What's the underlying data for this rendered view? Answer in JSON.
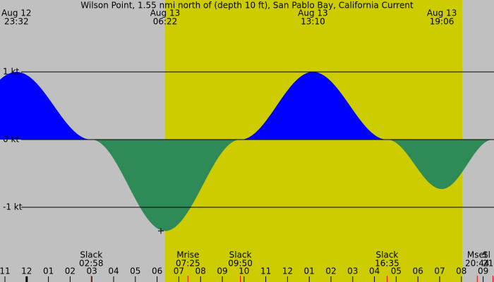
{
  "chart_data": {
    "type": "tide-current",
    "title": "Wilson Point, 1.55 nmi north of (depth 10 ft), San Pablo Bay, California Current",
    "x": [
      23.53,
      26.97,
      30.37,
      33.83,
      37.17,
      40.58,
      43.1,
      45.45
    ],
    "values": [
      1.0,
      0,
      -1.35,
      0,
      1.0,
      0,
      -0.73,
      0
    ],
    "flood_color": "#0000ff",
    "ebb_color": "#2e8b57",
    "background": "#c0c0c0",
    "daylight_color": "#cccc00",
    "daylight": [
      30.37,
      44.04
    ],
    "xlim": [
      22.773,
      45.5
    ],
    "ylim": [
      -2.104,
      2.0625
    ],
    "yticks": [
      {
        "value": 1,
        "label": "1 kt"
      },
      {
        "value": 0,
        "label": "0 kt"
      },
      {
        "value": -1,
        "label": "-1 kt"
      }
    ],
    "xticks": [
      {
        "value": 23,
        "label": "11"
      },
      {
        "value": 24,
        "label": "12"
      },
      {
        "value": 25,
        "label": "01"
      },
      {
        "value": 26,
        "label": "02"
      },
      {
        "value": 27,
        "label": "03"
      },
      {
        "value": 28,
        "label": "04"
      },
      {
        "value": 29,
        "label": "05"
      },
      {
        "value": 30,
        "label": "06"
      },
      {
        "value": 31,
        "label": "07"
      },
      {
        "value": 32,
        "label": "08"
      },
      {
        "value": 33,
        "label": "09"
      },
      {
        "value": 34,
        "label": "10"
      },
      {
        "value": 35,
        "label": "11"
      },
      {
        "value": 36,
        "label": "12"
      },
      {
        "value": 37,
        "label": "01"
      },
      {
        "value": 38,
        "label": "02"
      },
      {
        "value": 39,
        "label": "03"
      },
      {
        "value": 40,
        "label": "04"
      },
      {
        "value": 41,
        "label": "05"
      },
      {
        "value": 42,
        "label": "06"
      },
      {
        "value": 43,
        "label": "07"
      },
      {
        "value": 44,
        "label": "08"
      },
      {
        "value": 45,
        "label": "09"
      }
    ],
    "top_labels": [
      {
        "date": "Aug 12",
        "time": "23:32",
        "x": 23.53
      },
      {
        "date": "Aug 13",
        "time": "06:22",
        "x": 30.37
      },
      {
        "date": "Aug 13",
        "time": "13:10",
        "x": 37.17
      },
      {
        "date": "Aug 13",
        "time": "19:06",
        "x": 43.1
      }
    ],
    "bottom_labels": [
      {
        "name": "Slack",
        "time": "02:58",
        "x": 26.97
      },
      {
        "name": "Mrise",
        "time": "07:25",
        "x": 31.42
      },
      {
        "name": "Slack",
        "time": "09:50",
        "x": 33.83
      },
      {
        "name": "Slack",
        "time": "16:35",
        "x": 40.58
      },
      {
        "name": "Mset",
        "time": "20:44",
        "x": 44.73
      },
      {
        "name": "Sl",
        "time": "21",
        "x": 45.45
      }
    ]
  }
}
